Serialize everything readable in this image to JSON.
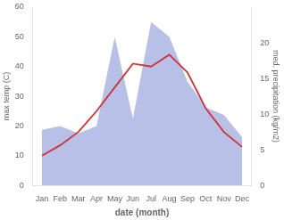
{
  "chart_data": {
    "type": "line",
    "xlabel": "date (month)",
    "ylabel": "max temp (C)",
    "y2label": "med. precipitation (kg/m2)",
    "categories": [
      "Jan",
      "Feb",
      "Mar",
      "Apr",
      "May",
      "Jun",
      "Jul",
      "Aug",
      "Sep",
      "Oct",
      "Nov",
      "Dec"
    ],
    "series": [
      {
        "type": "area",
        "color": "#b8c0e8",
        "values": [
          18.75,
          20,
          17.5,
          20,
          50,
          22.5,
          55,
          50,
          35,
          26.25,
          23.75,
          16.25
        ]
      },
      {
        "type": "line",
        "color": "#cc3333",
        "values": [
          10,
          13.5,
          18,
          25,
          33,
          41,
          40,
          44,
          38,
          26,
          18,
          13
        ]
      }
    ],
    "ylim": [
      0,
      60
    ],
    "yticks": [
      0,
      10,
      20,
      30,
      40,
      50,
      60
    ],
    "y2lim": [
      0,
      25
    ],
    "y2ticks": [
      0,
      5,
      10,
      15,
      20
    ],
    "grid": false
  }
}
